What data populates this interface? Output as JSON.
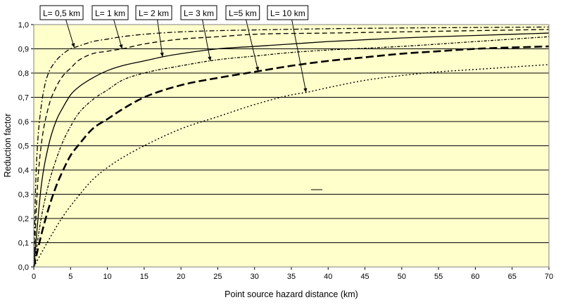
{
  "chart_data": {
    "type": "line",
    "title": "",
    "xlabel": "Point source hazard distance (km)",
    "ylabel": "Reduction factor",
    "xlim": [
      0,
      70
    ],
    "ylim": [
      0,
      1.0
    ],
    "x_ticks": [
      "0",
      "5",
      "10",
      "15",
      "20",
      "25",
      "30",
      "35",
      "40",
      "45",
      "50",
      "55",
      "60",
      "65",
      "70"
    ],
    "y_ticks": [
      "0,0",
      "0,1",
      "0,2",
      "0,3",
      "0,4",
      "0,5",
      "0,6",
      "0,7",
      "0,8",
      "0,9",
      "1,0"
    ],
    "grid": "horizontal",
    "plot_background": "#ffffcc",
    "line_color": "#000000",
    "series": [
      {
        "name": "L= 0,5 km",
        "style": "dash-dot",
        "label_x": 5.5,
        "x": [
          0,
          0.25,
          0.5,
          1,
          1.5,
          2,
          3,
          4,
          5,
          6,
          8,
          10,
          12,
          15,
          20,
          25,
          30,
          40,
          50,
          60,
          70
        ],
        "y": [
          0,
          0.33,
          0.5,
          0.66,
          0.75,
          0.8,
          0.85,
          0.88,
          0.9,
          0.91,
          0.93,
          0.94,
          0.95,
          0.96,
          0.97,
          0.975,
          0.978,
          0.983,
          0.986,
          0.988,
          0.99
        ]
      },
      {
        "name": "L= 1 km",
        "style": "dash",
        "label_x": 12,
        "x": [
          0,
          0.5,
          1,
          2,
          3,
          4,
          5,
          6,
          8,
          10,
          12,
          15,
          20,
          25,
          30,
          40,
          50,
          60,
          70
        ],
        "y": [
          0,
          0.33,
          0.5,
          0.66,
          0.74,
          0.79,
          0.82,
          0.85,
          0.88,
          0.89,
          0.9,
          0.92,
          0.94,
          0.95,
          0.96,
          0.965,
          0.97,
          0.975,
          0.98
        ]
      },
      {
        "name": "L= 2 km",
        "style": "solid",
        "label_x": 17.5,
        "x": [
          0,
          1,
          2,
          3,
          4,
          5,
          6,
          8,
          10,
          12,
          15,
          18,
          20,
          25,
          30,
          35,
          40,
          50,
          60,
          70
        ],
        "y": [
          0,
          0.33,
          0.5,
          0.6,
          0.66,
          0.71,
          0.74,
          0.78,
          0.81,
          0.83,
          0.85,
          0.87,
          0.88,
          0.9,
          0.91,
          0.92,
          0.93,
          0.945,
          0.955,
          0.965
        ]
      },
      {
        "name": "L= 3 km",
        "style": "dash-dot-small",
        "label_x": 24,
        "x": [
          0,
          1,
          2,
          3,
          4,
          5,
          6,
          8,
          10,
          12,
          15,
          20,
          25,
          30,
          35,
          40,
          50,
          60,
          70
        ],
        "y": [
          0,
          0.2,
          0.34,
          0.44,
          0.52,
          0.58,
          0.63,
          0.69,
          0.73,
          0.77,
          0.8,
          0.83,
          0.855,
          0.87,
          0.885,
          0.895,
          0.91,
          0.93,
          0.95
        ]
      },
      {
        "name": "L=5 km",
        "style": "long-dash",
        "label_x": 30.5,
        "x": [
          0,
          1,
          2,
          3,
          4,
          5,
          6,
          8,
          10,
          12,
          15,
          20,
          25,
          30,
          35,
          40,
          45,
          50,
          55,
          60,
          70
        ],
        "y": [
          0,
          0.13,
          0.24,
          0.33,
          0.4,
          0.46,
          0.5,
          0.57,
          0.61,
          0.65,
          0.7,
          0.75,
          0.78,
          0.805,
          0.83,
          0.85,
          0.865,
          0.88,
          0.89,
          0.9,
          0.91
        ]
      },
      {
        "name": "L= 10 km",
        "style": "dot",
        "label_x": 37,
        "x": [
          0,
          2,
          4,
          6,
          8,
          10,
          12,
          15,
          20,
          25,
          30,
          35,
          37,
          40,
          45,
          50,
          55,
          60,
          65,
          70
        ],
        "y": [
          0,
          0.11,
          0.21,
          0.29,
          0.36,
          0.41,
          0.45,
          0.5,
          0.57,
          0.62,
          0.67,
          0.71,
          0.72,
          0.74,
          0.77,
          0.79,
          0.805,
          0.815,
          0.825,
          0.835
        ]
      }
    ]
  }
}
